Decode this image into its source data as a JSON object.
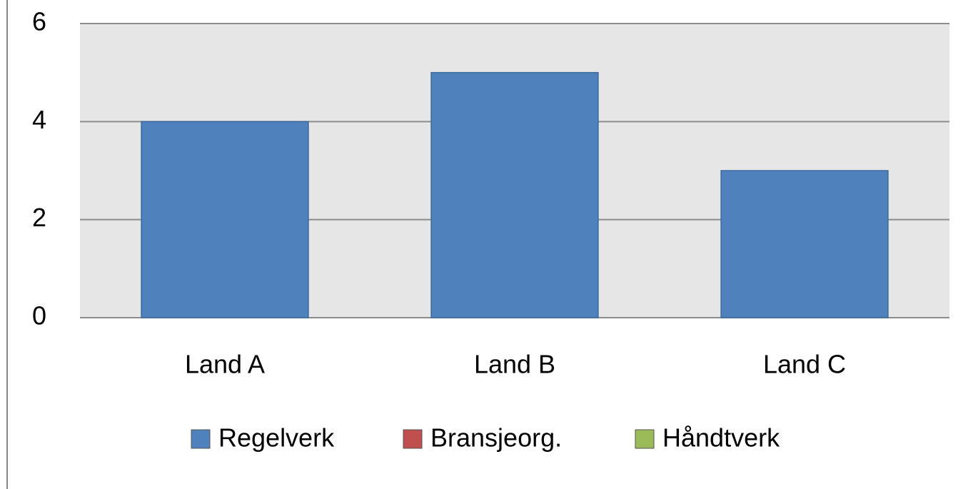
{
  "chart_data": {
    "type": "bar",
    "categories": [
      "Land A",
      "Land B",
      "Land C"
    ],
    "series": [
      {
        "name": "Regelverk",
        "color": "#4f81bd",
        "values": [
          4,
          5,
          3
        ]
      },
      {
        "name": "Bransjeorg.",
        "color": "#c0504d",
        "values": [
          null,
          null,
          null
        ]
      },
      {
        "name": "Håndtverk",
        "color": "#9bbb59",
        "values": [
          null,
          null,
          null
        ]
      }
    ],
    "ylim": [
      0,
      6
    ],
    "yticks": [
      0,
      2,
      4,
      6
    ],
    "grid": true,
    "legend": "bottom"
  }
}
